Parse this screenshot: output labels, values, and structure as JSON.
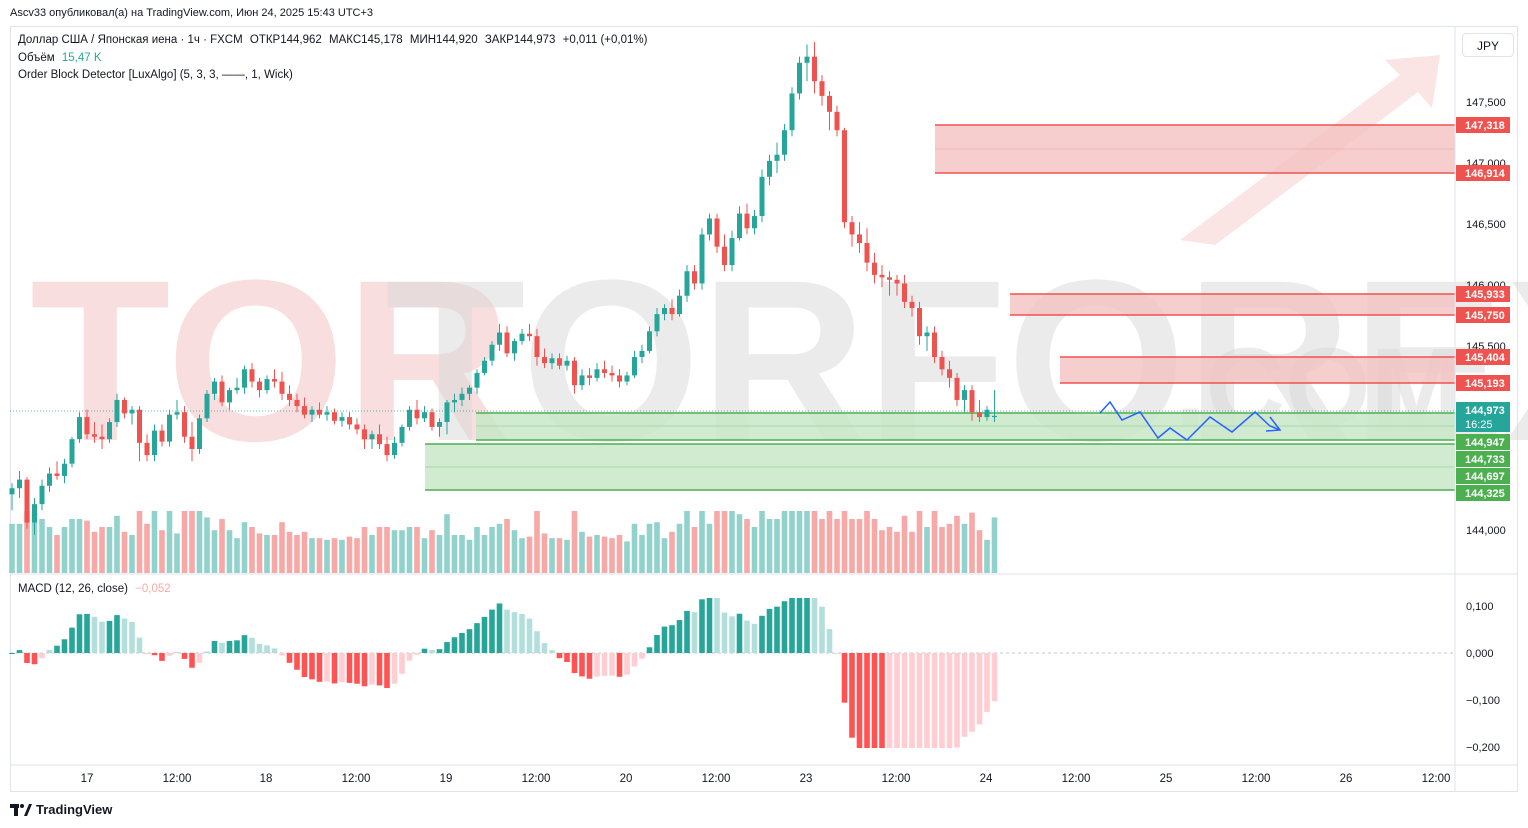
{
  "publisher_line": "Ascv33 опубликовал(а) на TradingView.com, Июн 24, 2025 15:43 UTC+3",
  "legend": {
    "symbol_line": "Доллар США / Японская иена · 1ч · FXCM",
    "open": "ОТКР144,962",
    "high": "МАКС145,178",
    "low": "МИН144,920",
    "close": "ЗАКР144,973",
    "change": "+0,011 (+0,01%)",
    "volume_label": "Объём",
    "volume_value": "15,47 K",
    "indicator": "Order Block Detector [LuxAlgo] (5, 3, 3, ——, 1, Wick)",
    "macd_label": "MACD (12, 26, close)",
    "macd_value": "−0,052"
  },
  "currency_button": "JPY",
  "watermark": {
    "main": "TORFOREX",
    "sub": ".COM"
  },
  "colors": {
    "up": "#26a69a",
    "down": "#ef5350",
    "up_vol": "#92d2cc",
    "down_vol": "#f7a9a7",
    "bear_zone": "#f5c2c2",
    "bull_zone": "#c8e8c8",
    "projection": "#2962ff"
  },
  "price_axis": [
    "147,500",
    "147,000",
    "146,500",
    "146,000",
    "145,500",
    "144,000"
  ],
  "price_badges": {
    "bear_1_top": "147,318",
    "bear_1_bottom": "146,914",
    "bear_2_top": "145,933",
    "bear_2_bottom": "145,750",
    "bear_3_top": "145,404",
    "bear_3_bottom": "145,193",
    "current_price": "144,973",
    "countdown": "16:25",
    "bull_1_top": "144,947",
    "bull_1_bottom": "144,733",
    "bull_2_top": "144,697",
    "bull_2_bottom": "144,325"
  },
  "macd_axis": [
    "0,100",
    "0,000",
    "−0,100",
    "−0,200"
  ],
  "time_axis": [
    "17",
    "12:00",
    "18",
    "12:00",
    "19",
    "12:00",
    "20",
    "12:00",
    "23",
    "12:00",
    "24",
    "12:00",
    "25",
    "12:00",
    "26",
    "12:00"
  ],
  "footer": "TradingView",
  "chart_data": {
    "type": "candlestick",
    "symbol": "USDJPY",
    "timeframe": "1h",
    "candles": [
      [
        144.33,
        144.42,
        144.2,
        144.38
      ],
      [
        144.38,
        144.52,
        144.3,
        144.45
      ],
      [
        144.45,
        144.47,
        144.05,
        144.1
      ],
      [
        144.1,
        144.3,
        144.0,
        144.25
      ],
      [
        144.25,
        144.45,
        144.2,
        144.4
      ],
      [
        144.4,
        144.55,
        144.35,
        144.5
      ],
      [
        144.5,
        144.6,
        144.45,
        144.48
      ],
      [
        144.48,
        144.62,
        144.42,
        144.58
      ],
      [
        144.58,
        144.8,
        144.55,
        144.78
      ],
      [
        144.78,
        145.0,
        144.75,
        144.96
      ],
      [
        144.96,
        145.02,
        144.78,
        144.82
      ],
      [
        144.82,
        144.92,
        144.75,
        144.8
      ],
      [
        144.8,
        144.9,
        144.7,
        144.78
      ],
      [
        144.78,
        144.95,
        144.75,
        144.92
      ],
      [
        144.92,
        145.15,
        144.88,
        145.1
      ],
      [
        145.1,
        145.12,
        144.95,
        144.99
      ],
      [
        144.99,
        145.05,
        144.9,
        145.02
      ],
      [
        145.02,
        145.05,
        144.6,
        144.75
      ],
      [
        144.75,
        144.82,
        144.6,
        144.65
      ],
      [
        144.65,
        144.9,
        144.6,
        144.85
      ],
      [
        144.85,
        144.9,
        144.72,
        144.76
      ],
      [
        144.76,
        145.02,
        144.72,
        144.98
      ],
      [
        144.98,
        145.1,
        144.94,
        145.0
      ],
      [
        145.0,
        145.05,
        144.75,
        144.8
      ],
      [
        144.8,
        144.92,
        144.6,
        144.7
      ],
      [
        144.7,
        144.98,
        144.66,
        144.95
      ],
      [
        144.95,
        145.18,
        144.92,
        145.15
      ],
      [
        145.15,
        145.28,
        145.1,
        145.25
      ],
      [
        145.25,
        145.3,
        145.05,
        145.08
      ],
      [
        145.08,
        145.2,
        145.02,
        145.18
      ],
      [
        145.18,
        145.28,
        145.15,
        145.2
      ],
      [
        145.2,
        145.38,
        145.15,
        145.35
      ],
      [
        145.35,
        145.4,
        145.2,
        145.25
      ],
      [
        145.25,
        145.28,
        145.12,
        145.18
      ],
      [
        145.18,
        145.3,
        145.15,
        145.27
      ],
      [
        145.27,
        145.35,
        145.2,
        145.25
      ],
      [
        145.25,
        145.33,
        145.1,
        145.15
      ],
      [
        145.15,
        145.22,
        145.05,
        145.1
      ],
      [
        145.1,
        145.15,
        145.0,
        145.05
      ],
      [
        145.05,
        145.12,
        144.95,
        144.98
      ],
      [
        144.98,
        145.05,
        144.92,
        145.02
      ],
      [
        145.02,
        145.08,
        144.95,
        144.98
      ],
      [
        144.98,
        145.05,
        144.93,
        145.0
      ],
      [
        145.0,
        145.03,
        144.9,
        144.93
      ],
      [
        144.93,
        145.0,
        144.88,
        144.96
      ],
      [
        144.96,
        145.0,
        144.86,
        144.9
      ],
      [
        144.9,
        144.95,
        144.82,
        144.86
      ],
      [
        144.86,
        144.9,
        144.7,
        144.78
      ],
      [
        144.78,
        144.85,
        144.7,
        144.82
      ],
      [
        144.82,
        144.9,
        144.7,
        144.74
      ],
      [
        144.74,
        144.8,
        144.6,
        144.65
      ],
      [
        144.65,
        144.8,
        144.62,
        144.75
      ],
      [
        144.75,
        144.9,
        144.72,
        144.88
      ],
      [
        144.88,
        145.05,
        144.85,
        145.02
      ],
      [
        145.02,
        145.1,
        144.9,
        144.95
      ],
      [
        144.95,
        145.05,
        144.92,
        145.0
      ],
      [
        145.0,
        145.03,
        144.85,
        144.88
      ],
      [
        144.88,
        144.95,
        144.8,
        144.92
      ],
      [
        144.92,
        145.1,
        144.82,
        145.08
      ],
      [
        145.08,
        145.15,
        145.0,
        145.1
      ],
      [
        145.1,
        145.2,
        145.05,
        145.15
      ],
      [
        145.15,
        145.22,
        145.1,
        145.2
      ],
      [
        145.2,
        145.35,
        145.15,
        145.32
      ],
      [
        145.32,
        145.45,
        145.3,
        145.42
      ],
      [
        145.42,
        145.58,
        145.38,
        145.55
      ],
      [
        145.55,
        145.72,
        145.5,
        145.65
      ],
      [
        145.65,
        145.7,
        145.45,
        145.48
      ],
      [
        145.48,
        145.6,
        145.42,
        145.58
      ],
      [
        145.58,
        145.68,
        145.55,
        145.64
      ],
      [
        145.64,
        145.72,
        145.58,
        145.62
      ],
      [
        145.62,
        145.68,
        145.38,
        145.45
      ],
      [
        145.45,
        145.52,
        145.36,
        145.4
      ],
      [
        145.4,
        145.48,
        145.35,
        145.44
      ],
      [
        145.44,
        145.48,
        145.35,
        145.38
      ],
      [
        145.38,
        145.46,
        145.34,
        145.42
      ],
      [
        145.42,
        145.45,
        145.15,
        145.22
      ],
      [
        145.22,
        145.35,
        145.18,
        145.3
      ],
      [
        145.3,
        145.36,
        145.22,
        145.28
      ],
      [
        145.28,
        145.4,
        145.25,
        145.35
      ],
      [
        145.35,
        145.42,
        145.28,
        145.32
      ],
      [
        145.32,
        145.38,
        145.25,
        145.3
      ],
      [
        145.3,
        145.35,
        145.2,
        145.25
      ],
      [
        145.25,
        145.33,
        145.22,
        145.3
      ],
      [
        145.3,
        145.5,
        145.28,
        145.45
      ],
      [
        145.45,
        145.55,
        145.4,
        145.5
      ],
      [
        145.5,
        145.7,
        145.48,
        145.66
      ],
      [
        145.66,
        145.85,
        145.62,
        145.8
      ],
      [
        145.8,
        145.88,
        145.75,
        145.85
      ],
      [
        145.85,
        145.92,
        145.75,
        145.8
      ],
      [
        145.8,
        146.0,
        145.78,
        145.95
      ],
      [
        145.95,
        146.2,
        145.9,
        146.15
      ],
      [
        146.15,
        146.2,
        146.0,
        146.05
      ],
      [
        146.05,
        146.5,
        146.0,
        146.45
      ],
      [
        146.45,
        146.62,
        146.4,
        146.58
      ],
      [
        146.58,
        146.62,
        146.3,
        146.35
      ],
      [
        146.35,
        146.45,
        146.15,
        146.2
      ],
      [
        146.2,
        146.48,
        146.15,
        146.42
      ],
      [
        146.42,
        146.68,
        146.4,
        146.62
      ],
      [
        146.62,
        146.7,
        146.45,
        146.5
      ],
      [
        146.5,
        146.65,
        146.45,
        146.6
      ],
      [
        146.6,
        146.98,
        146.55,
        146.92
      ],
      [
        146.92,
        147.1,
        146.85,
        147.05
      ],
      [
        147.05,
        147.2,
        146.95,
        147.1
      ],
      [
        147.1,
        147.35,
        147.05,
        147.3
      ],
      [
        147.3,
        147.65,
        147.25,
        147.6
      ],
      [
        147.6,
        147.9,
        147.55,
        147.85
      ],
      [
        147.85,
        148.0,
        147.7,
        147.9
      ],
      [
        147.9,
        148.02,
        147.6,
        147.7
      ],
      [
        147.7,
        147.75,
        147.5,
        147.58
      ],
      [
        147.58,
        147.62,
        147.3,
        147.45
      ],
      [
        147.45,
        147.5,
        147.25,
        147.3
      ],
      [
        147.3,
        147.32,
        146.5,
        146.55
      ],
      [
        146.55,
        146.6,
        146.35,
        146.45
      ],
      [
        146.45,
        146.55,
        146.3,
        146.38
      ],
      [
        146.38,
        146.5,
        146.15,
        146.22
      ],
      [
        146.22,
        146.3,
        146.05,
        146.12
      ],
      [
        146.12,
        146.2,
        146.02,
        146.1
      ],
      [
        146.1,
        146.15,
        145.95,
        146.08
      ],
      [
        146.08,
        146.12,
        145.95,
        146.05
      ],
      [
        146.05,
        146.12,
        145.85,
        145.9
      ],
      [
        145.9,
        145.95,
        145.78,
        145.85
      ],
      [
        145.85,
        145.9,
        145.55,
        145.62
      ],
      [
        145.62,
        145.7,
        145.5,
        145.65
      ],
      [
        145.65,
        145.7,
        145.4,
        145.45
      ],
      [
        145.45,
        145.5,
        145.3,
        145.35
      ],
      [
        145.35,
        145.42,
        145.2,
        145.28
      ],
      [
        145.28,
        145.32,
        145.05,
        145.1
      ],
      [
        145.1,
        145.22,
        145.0,
        145.18
      ],
      [
        145.18,
        145.22,
        144.93,
        145.0
      ],
      [
        145.0,
        145.1,
        144.92,
        144.96
      ],
      [
        144.96,
        145.05,
        144.93,
        145.02
      ],
      [
        144.96,
        145.18,
        144.92,
        144.97
      ]
    ]
  }
}
